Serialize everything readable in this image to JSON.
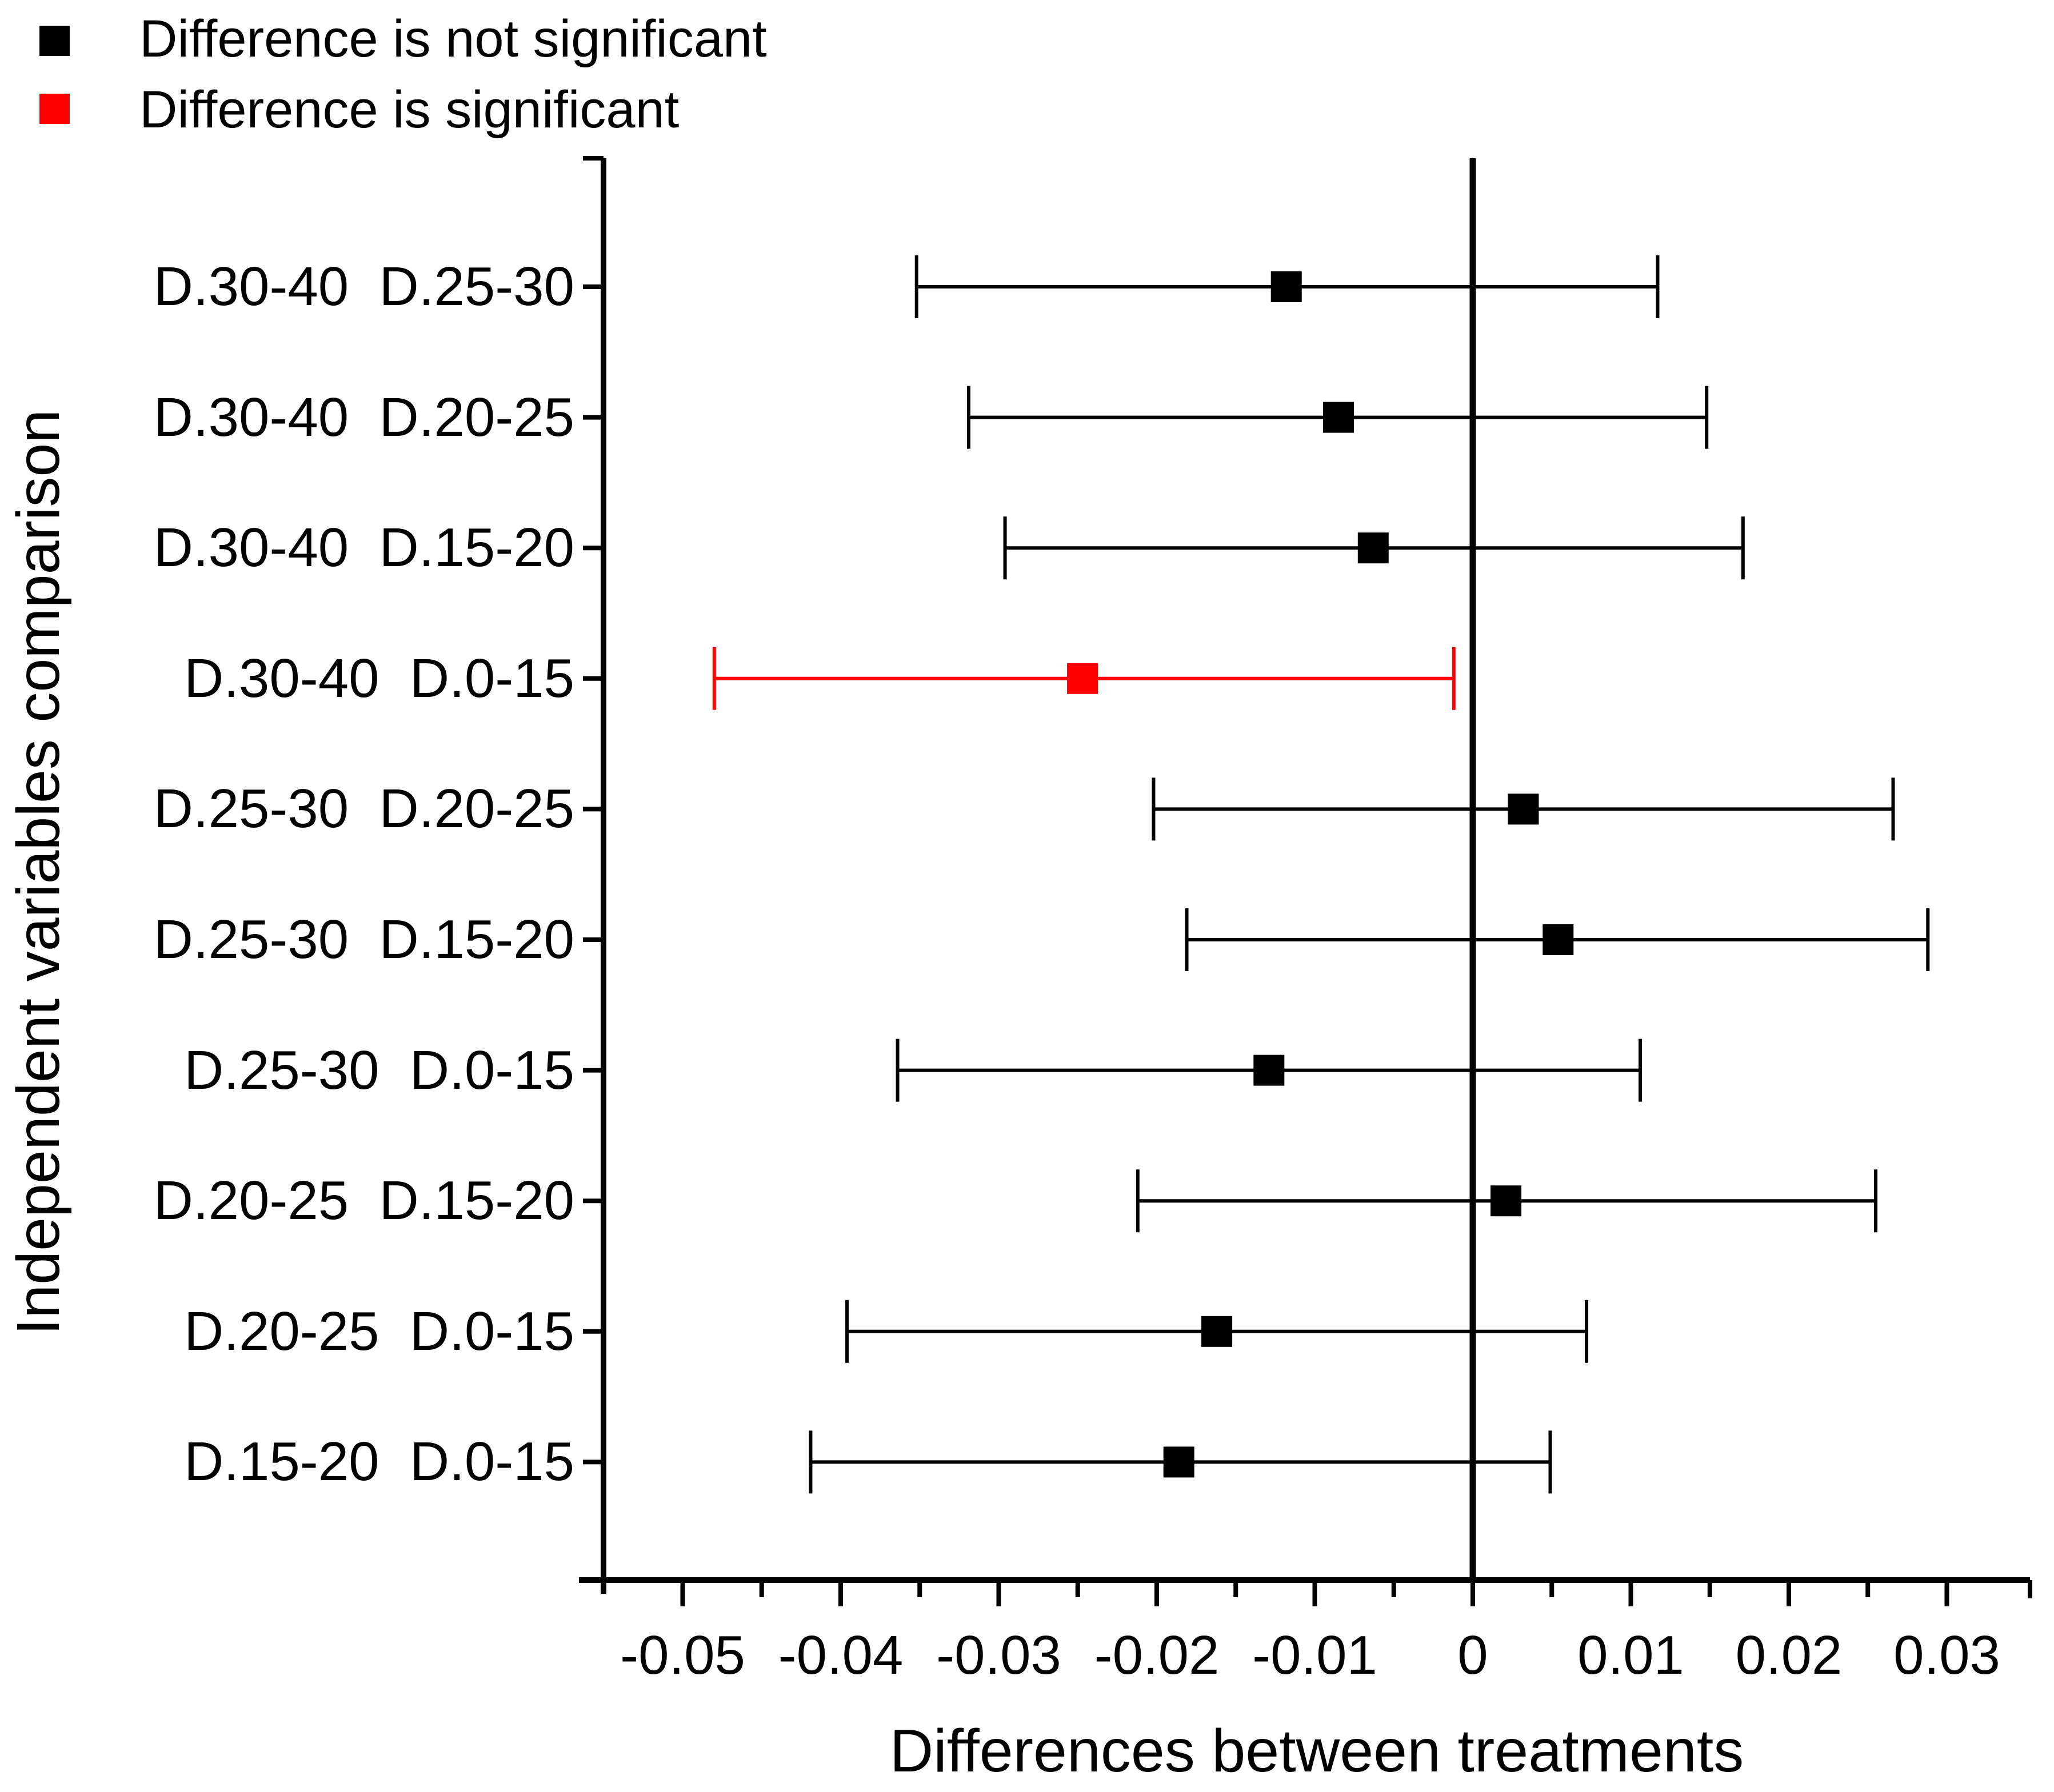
{
  "legend": {
    "items": [
      {
        "label": "Difference is not significant",
        "color": "#000000",
        "significant": false
      },
      {
        "label": "Difference is significant",
        "color": "#ff0000",
        "significant": true
      }
    ]
  },
  "colors": {
    "not_significant": "#000000",
    "significant": "#ff0000",
    "axis": "#000000",
    "background": "#ffffff"
  },
  "chart_data": {
    "type": "scatter",
    "subtype": "horizontal-error-bar-forest-plot",
    "title": "",
    "xlabel": "Differences between treatments",
    "ylabel": "Independent variables comparison",
    "xlim": [
      -0.055,
      0.035
    ],
    "grid": false,
    "zero_reference_line": 0,
    "x_major_tick_values": [
      -0.05,
      -0.04,
      -0.03,
      -0.02,
      -0.01,
      0,
      0.01,
      0.02,
      0.03
    ],
    "x_major_tick_labels": [
      "-0.05",
      "-0.04",
      "-0.03",
      "-0.02",
      "-0.01",
      "0",
      "0.01",
      "0.02",
      "0.03"
    ],
    "x_minor_tick_step": 0.005,
    "legend_position": "top-left",
    "rows": [
      {
        "label": "D.30-40  D.25-30",
        "center": -0.0118,
        "low": -0.0352,
        "high": 0.0117,
        "significant": false
      },
      {
        "label": "D.30-40  D.20-25",
        "center": -0.0085,
        "low": -0.0319,
        "high": 0.0148,
        "significant": false
      },
      {
        "label": "D.30-40  D.15-20",
        "center": -0.0063,
        "low": -0.0296,
        "high": 0.0171,
        "significant": false
      },
      {
        "label": "D.30-40  D.0-15",
        "center": -0.0247,
        "low": -0.048,
        "high": -0.0012,
        "significant": true
      },
      {
        "label": "D.25-30  D.20-25",
        "center": 0.0032,
        "low": -0.0202,
        "high": 0.0266,
        "significant": false
      },
      {
        "label": "D.25-30  D.15-20",
        "center": 0.0054,
        "low": -0.0181,
        "high": 0.0288,
        "significant": false
      },
      {
        "label": "D.25-30  D.0-15",
        "center": -0.0129,
        "low": -0.0364,
        "high": 0.0106,
        "significant": false
      },
      {
        "label": "D.20-25  D.15-20",
        "center": 0.0021,
        "low": -0.0212,
        "high": 0.0255,
        "significant": false
      },
      {
        "label": "D.20-25  D.0-15",
        "center": -0.0162,
        "low": -0.0396,
        "high": 0.0072,
        "significant": false
      },
      {
        "label": "D.15-20  D.0-15",
        "center": -0.0186,
        "low": -0.0419,
        "high": 0.0049,
        "significant": false
      }
    ]
  }
}
